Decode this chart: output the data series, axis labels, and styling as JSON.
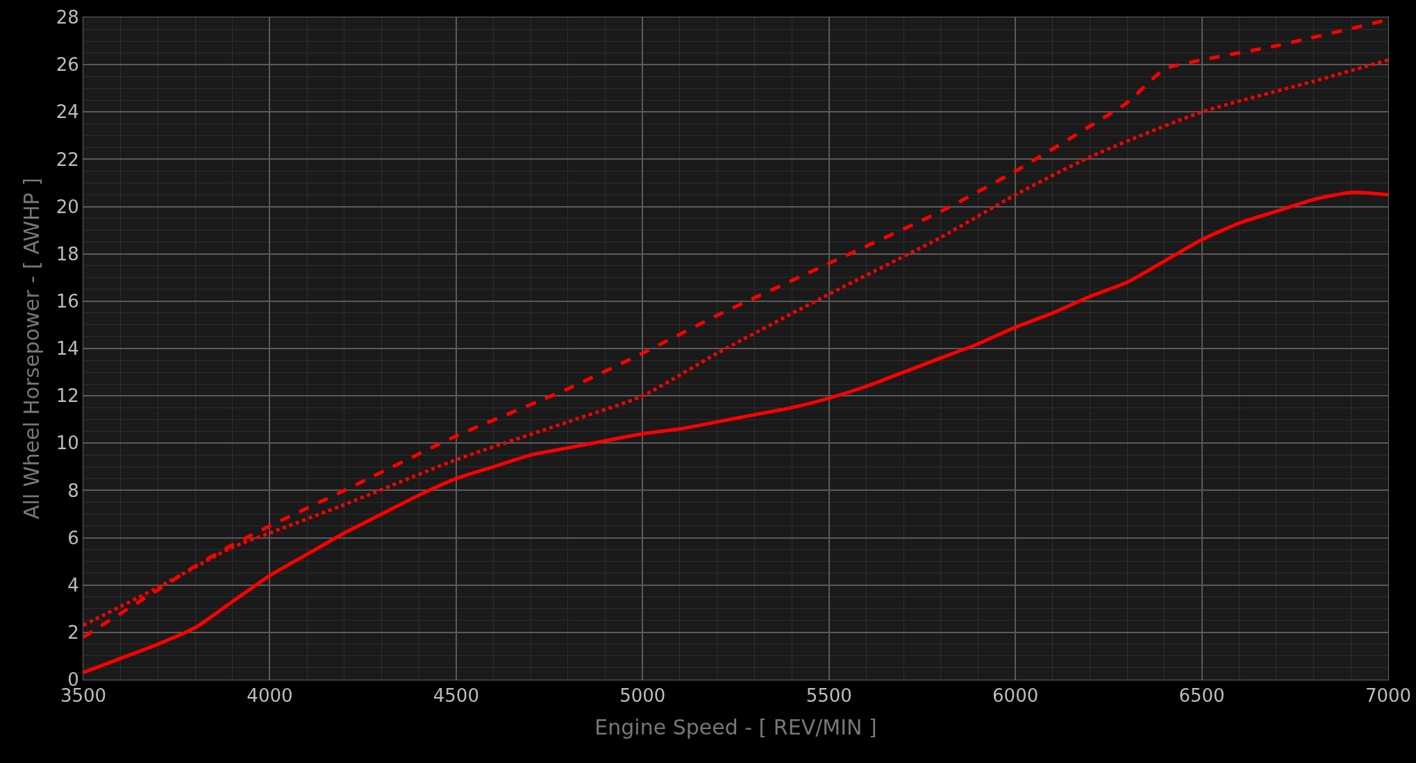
{
  "chart_data": {
    "type": "line",
    "xlabel": "Engine Speed - [ REV/MIN ]",
    "ylabel": "All Wheel Horsepower - [ AWHP ]",
    "xlim": [
      3500,
      7000
    ],
    "xticks": [
      3500,
      4000,
      4500,
      5000,
      5500,
      6000,
      6500,
      7000
    ],
    "ylim": [
      0,
      28
    ],
    "yticks": [
      0,
      2,
      4,
      6,
      8,
      10,
      12,
      14,
      16,
      18,
      20,
      22,
      24,
      26,
      28
    ],
    "grid": true,
    "series": [
      {
        "color": "#ff0000",
        "line_style": "solid",
        "x": [
          3500,
          3600,
          3700,
          3800,
          3900,
          4000,
          4100,
          4200,
          4300,
          4400,
          4500,
          4600,
          4700,
          4800,
          4900,
          5000,
          5100,
          5200,
          5300,
          5400,
          5500,
          5600,
          5700,
          5800,
          5900,
          6000,
          6100,
          6200,
          6300,
          6400,
          6500,
          6600,
          6700,
          6800,
          6900,
          7000
        ],
        "values": [
          0.3,
          0.9,
          1.5,
          2.2,
          3.3,
          4.4,
          5.3,
          6.2,
          7.0,
          7.8,
          8.5,
          9.0,
          9.5,
          9.8,
          10.1,
          10.4,
          10.6,
          10.9,
          11.2,
          11.5,
          11.9,
          12.4,
          13.0,
          13.6,
          14.2,
          14.9,
          15.5,
          16.2,
          16.8,
          17.7,
          18.6,
          19.3,
          19.8,
          20.3,
          20.6,
          20.5
        ]
      },
      {
        "color": "#ff0000",
        "line_style": "dashed",
        "x": [
          3500,
          3700,
          3800,
          3900,
          4000,
          4200,
          4500,
          4800,
          5000,
          5200,
          5500,
          5800,
          6000,
          6200,
          6300,
          6400,
          6500,
          6700,
          7000
        ],
        "values": [
          1.8,
          3.8,
          4.8,
          5.7,
          6.5,
          8.0,
          10.3,
          12.3,
          13.8,
          15.4,
          17.6,
          19.8,
          21.5,
          23.4,
          24.4,
          25.8,
          26.2,
          26.8,
          27.9
        ]
      },
      {
        "color": "#ff0000",
        "line_style": "dotted",
        "x": [
          3500,
          3700,
          3900,
          4000,
          4200,
          4500,
          4800,
          5000,
          5200,
          5500,
          5800,
          6000,
          6200,
          6500,
          6800,
          7000
        ],
        "values": [
          2.3,
          3.9,
          5.6,
          6.2,
          7.4,
          9.3,
          10.9,
          12.0,
          13.8,
          16.3,
          18.7,
          20.5,
          22.1,
          24.0,
          25.3,
          26.2
        ]
      }
    ]
  }
}
